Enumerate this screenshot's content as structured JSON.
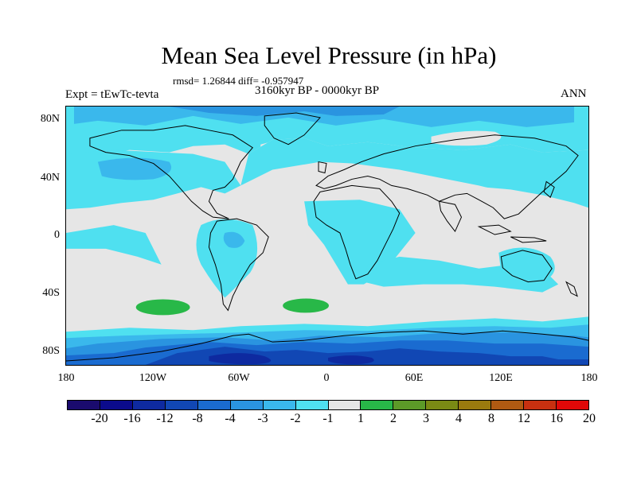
{
  "title": "Mean Sea Level Pressure (in hPa)",
  "stats": "rmsd= 1.26844 diff= -0.957947",
  "experiment": "Expt = tEwTc-tevta",
  "period": "3160kyr BP - 0000kyr BP",
  "season": "ANN",
  "lat_labels": [
    "80N",
    "40N",
    "0",
    "40S",
    "80S"
  ],
  "lon_labels": [
    "180",
    "120W",
    "60W",
    "0",
    "60E",
    "120E",
    "180"
  ],
  "colorbar": {
    "colors": [
      "#1a0b6e",
      "#0b0b8c",
      "#0e2aa0",
      "#1147b4",
      "#1a6bd0",
      "#2a94e0",
      "#3ab8ec",
      "#4fe0f0",
      "#e6e6e6",
      "#28b848",
      "#5c9a28",
      "#7a8a14",
      "#9a7a0e",
      "#b05a12",
      "#c83010",
      "#e00808"
    ],
    "labels": [
      "-20",
      "-16",
      "-12",
      "-8",
      "-4",
      "-3",
      "-2",
      "-1",
      "1",
      "2",
      "3",
      "4",
      "8",
      "12",
      "16",
      "20"
    ]
  },
  "colors": {
    "background_gray": "#e6e6e6",
    "cyan": "#4fe0f0",
    "light_blue": "#3ab8ec",
    "mid_blue": "#2a94e0",
    "blue": "#1a6bd0",
    "dark_blue": "#1147b4",
    "navy": "#0e2aa0",
    "green": "#28b848"
  }
}
